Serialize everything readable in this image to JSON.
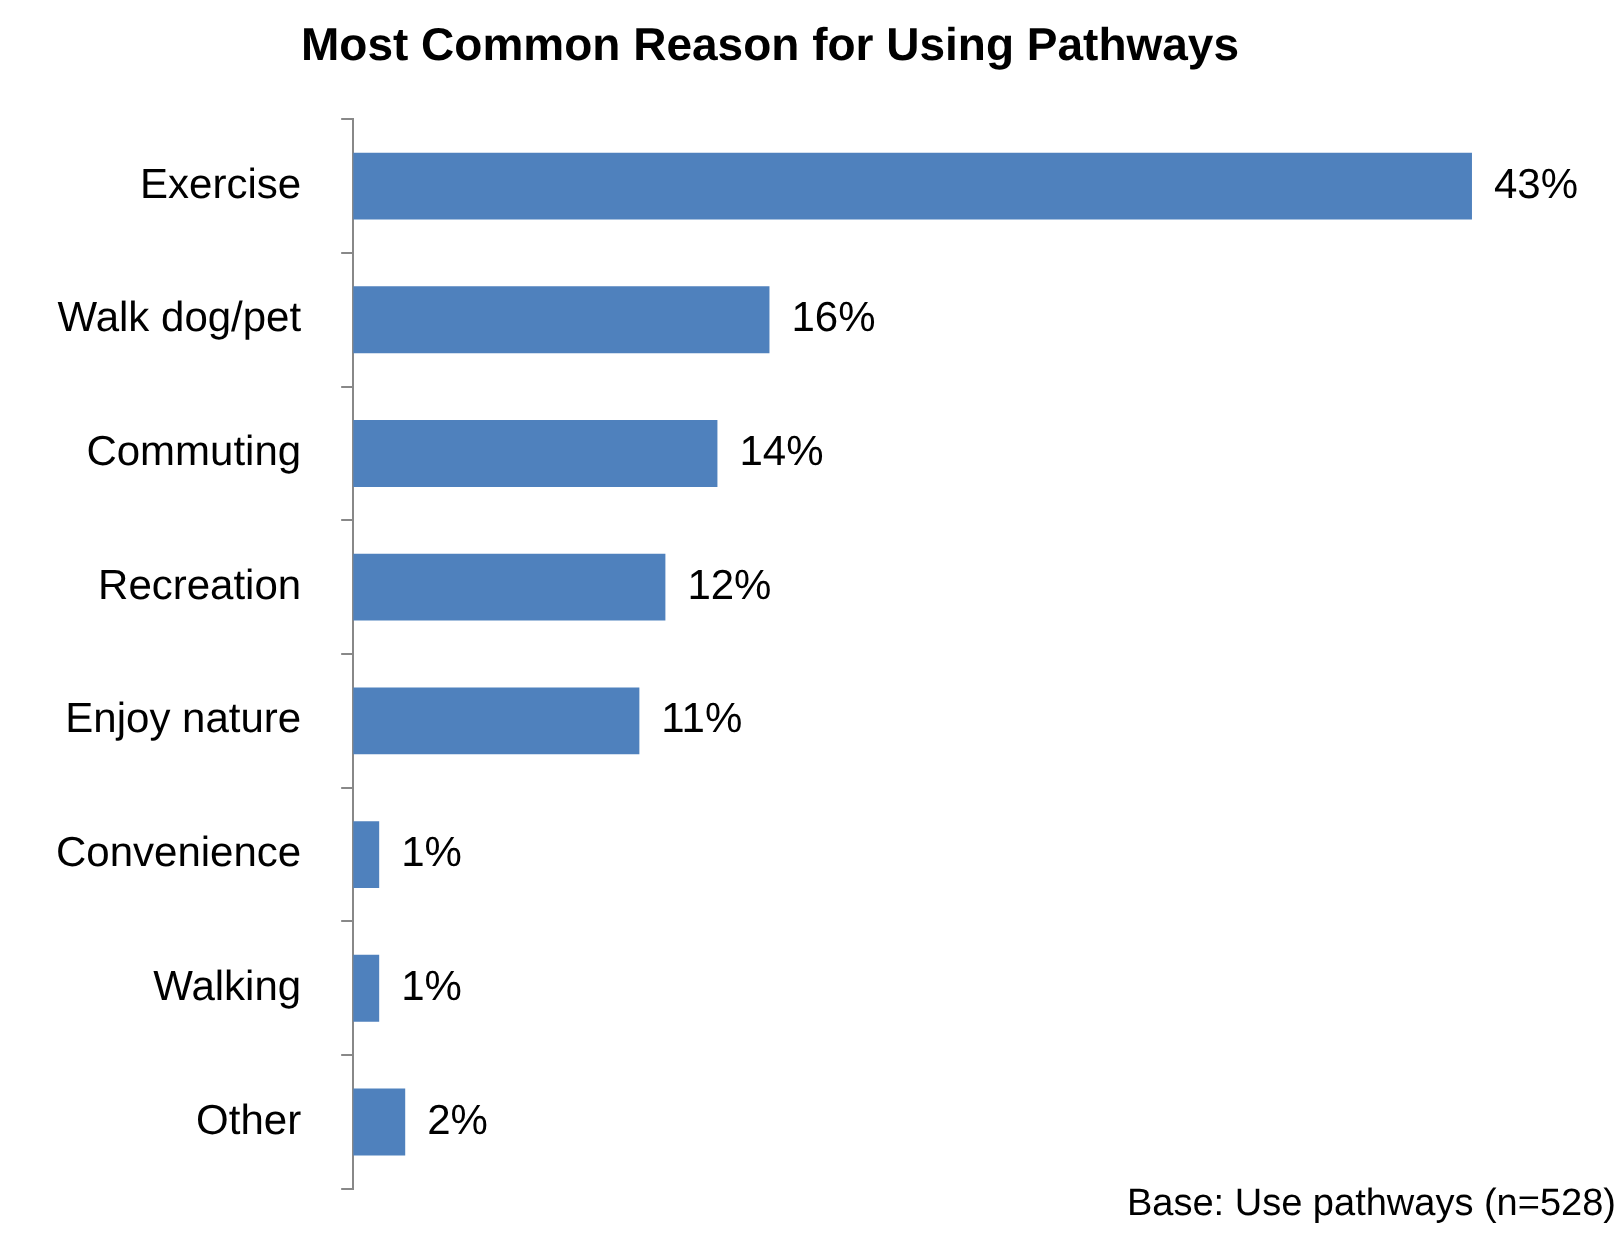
{
  "chart_data": {
    "type": "bar",
    "orientation": "horizontal",
    "title": "Most Common Reason for Using Pathways",
    "categories": [
      "Exercise",
      "Walk dog/pet",
      "Commuting",
      "Recreation",
      "Enjoy nature",
      "Convenience",
      "Walking",
      "Other"
    ],
    "values": [
      43,
      16,
      14,
      12,
      11,
      1,
      1,
      2
    ],
    "value_labels": [
      "43%",
      "16%",
      "14%",
      "12%",
      "11%",
      "1%",
      "1%",
      "2%"
    ],
    "color": "#4f81bd",
    "tick_labels": "y",
    "annotations": [
      "Base: Use pathways (n=528)"
    ]
  }
}
